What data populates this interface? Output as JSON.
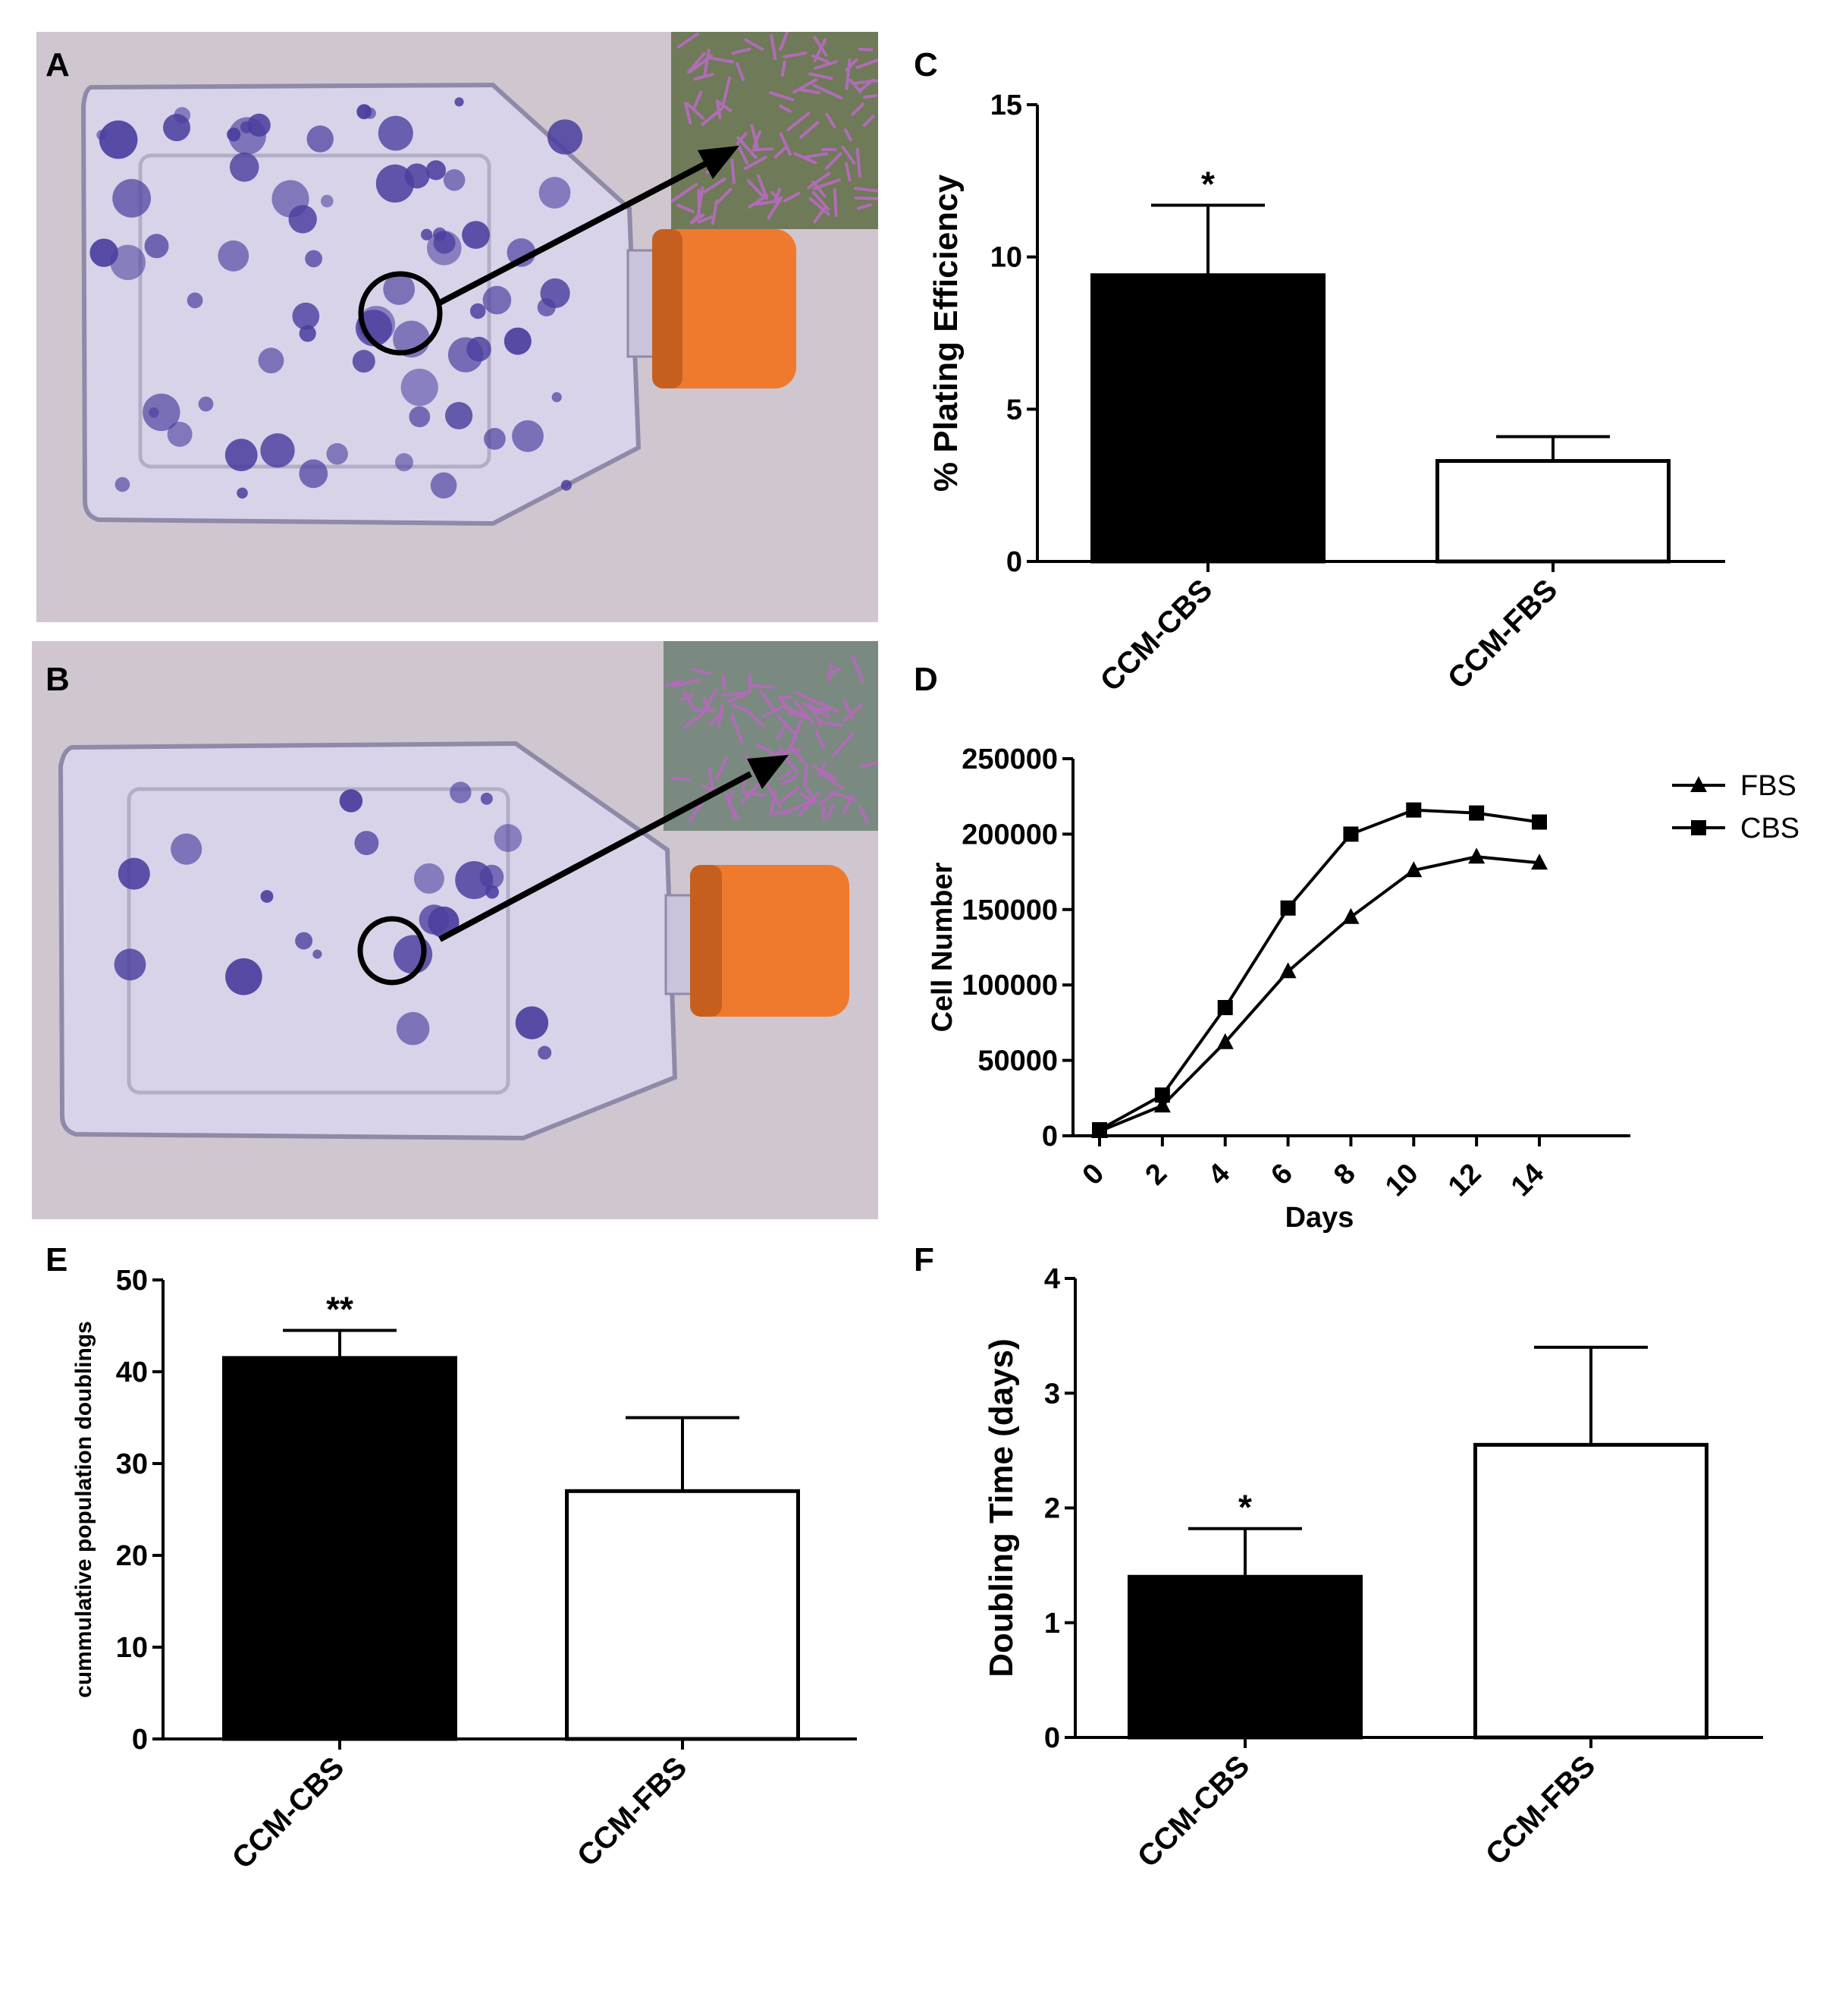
{
  "panels": {
    "A": "A",
    "B": "B",
    "C": "C",
    "D": "D",
    "E": "E",
    "F": "F"
  },
  "photos": {
    "flask_body_color": "#d9d3ea",
    "background_color": "#cfc6cf",
    "cap_color": "#ef7a2e",
    "colony_color": "#4b3f9e",
    "inset_background": "#6f7a58",
    "cell_color": "#b06cb7"
  },
  "chart_data": [
    {
      "id": "C",
      "type": "bar",
      "categories": [
        "CCM-CBS",
        "CCM-FBS"
      ],
      "values": [
        9.4,
        3.3
      ],
      "errors": [
        2.3,
        0.8
      ],
      "bar_colors": [
        "#000000",
        "#ffffff"
      ],
      "significance": [
        "*",
        ""
      ],
      "ylabel": "% Plating Efficiency",
      "ylim": [
        0,
        15
      ],
      "yticks": [
        0,
        5,
        10,
        15
      ]
    },
    {
      "id": "D",
      "type": "line",
      "x": [
        0,
        2,
        4,
        6,
        8,
        10,
        12,
        14
      ],
      "series": [
        {
          "name": "FBS",
          "marker": "triangle",
          "values": [
            3000,
            20000,
            62000,
            109000,
            145000,
            176000,
            185000,
            181000
          ]
        },
        {
          "name": "CBS",
          "marker": "square",
          "values": [
            4000,
            27000,
            85000,
            151000,
            200000,
            216000,
            214000,
            208000
          ]
        }
      ],
      "xlabel": "Days",
      "ylabel": "Cell Number",
      "ylim": [
        0,
        250000
      ],
      "yticks": [
        0,
        50000,
        100000,
        150000,
        200000,
        250000
      ],
      "xticks": [
        0,
        2,
        4,
        6,
        8,
        10,
        12,
        14
      ],
      "legend_position": "top-right"
    },
    {
      "id": "E",
      "type": "bar",
      "categories": [
        "CCM-CBS",
        "CCM-FBS"
      ],
      "values": [
        41.5,
        27
      ],
      "errors": [
        3,
        8
      ],
      "bar_colors": [
        "#000000",
        "#ffffff"
      ],
      "significance": [
        "**",
        ""
      ],
      "ylabel": "cummulative population doublings",
      "ylim": [
        0,
        50
      ],
      "yticks": [
        0,
        10,
        20,
        30,
        40,
        50
      ]
    },
    {
      "id": "F",
      "type": "bar",
      "categories": [
        "CCM-CBS",
        "CCM-FBS"
      ],
      "values": [
        1.4,
        2.55
      ],
      "errors": [
        0.42,
        0.85
      ],
      "bar_colors": [
        "#000000",
        "#ffffff"
      ],
      "significance": [
        "*",
        ""
      ],
      "ylabel": "Doubling Time (days)",
      "ylim": [
        0,
        4
      ],
      "yticks": [
        0,
        1,
        2,
        3,
        4
      ]
    }
  ]
}
